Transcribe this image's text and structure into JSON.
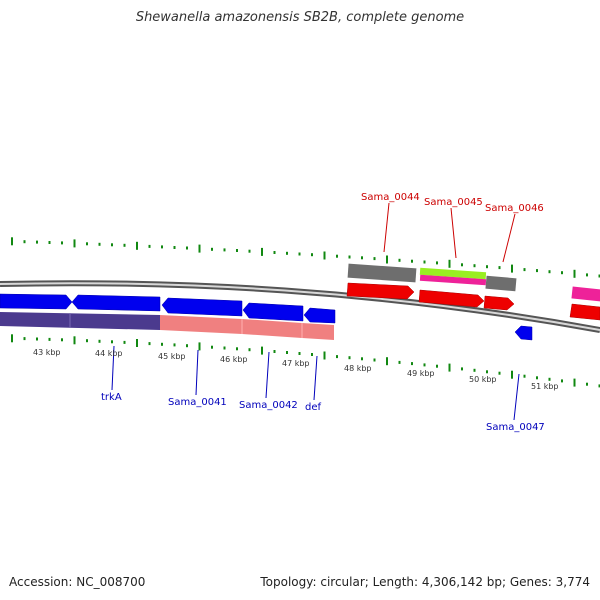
{
  "title": "Shewanella amazonensis SB2B, complete genome",
  "footer": {
    "accession": "Accession: NC_008700",
    "stats": "Topology: circular; Length: 4,306,142 bp; Genes: 3,774"
  },
  "colors": {
    "forward_cds": "#0000ee",
    "reverse_cds": "#ee0000",
    "cog_a": "#4b3a8e",
    "cog_b": "#f08080",
    "cog_c": "#ff33aa",
    "cog_d": "#99ee22",
    "cog_e": "#707070",
    "tick": "#118811",
    "label_top": "#cc0000",
    "label_bottom": "#0000bb"
  },
  "kbp_labels": [
    "43 kbp",
    "44 kbp",
    "45 kbp",
    "46 kbp",
    "47 kbp",
    "48 kbp",
    "49 kbp",
    "50 kbp",
    "51 kbp"
  ],
  "gene_labels_top": [
    "Sama_0044",
    "Sama_0045",
    "Sama_0046"
  ],
  "gene_labels_bottom": [
    "trkA",
    "Sama_0041",
    "Sama_0042",
    "def",
    "Sama_0047"
  ]
}
